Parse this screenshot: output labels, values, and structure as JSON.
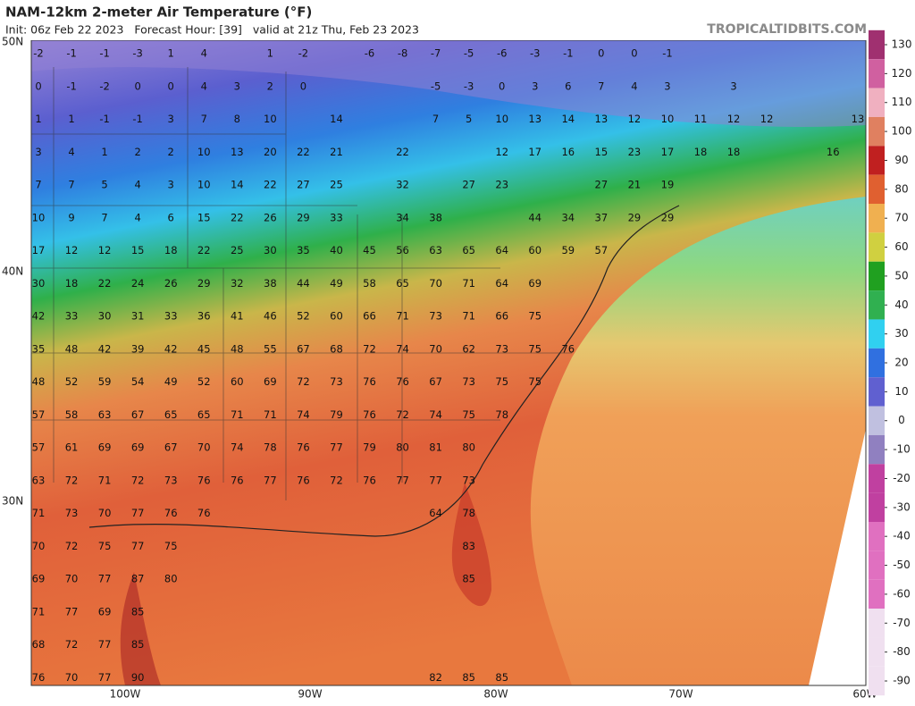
{
  "header": {
    "title": "NAM-12km 2-meter Air Temperature (°F)",
    "subtitle": "Init: 06z Feb 22 2023   Forecast Hour: [39]   valid at 21z Thu, Feb 23 2023",
    "watermark": "TROPICALTIDBITS.COM"
  },
  "map": {
    "lat_labels": [
      "50N",
      "40N",
      "30N"
    ],
    "lon_labels": [
      "100W",
      "90W",
      "80W",
      "70W",
      "60W"
    ],
    "stations": [
      [
        -2,
        -1,
        -1,
        -3,
        1,
        4,
        1,
        -2,
        -6,
        -8,
        -7,
        -5,
        -6,
        -3,
        -1,
        0,
        0,
        -1
      ],
      [
        0,
        -1,
        -2,
        0,
        0,
        4,
        3,
        2,
        0,
        -5,
        -3,
        0,
        3,
        6,
        7,
        4,
        3,
        3
      ],
      [
        1,
        1,
        -1,
        -1,
        3,
        7,
        8,
        10,
        14,
        7,
        5,
        10,
        13,
        14,
        13,
        12,
        10,
        11,
        12,
        12,
        13
      ],
      [
        3,
        4,
        1,
        2,
        2,
        10,
        13,
        20,
        22,
        21,
        22,
        12,
        17,
        16,
        15,
        23,
        17,
        18,
        18,
        16
      ],
      [
        7,
        7,
        5,
        4,
        3,
        10,
        14,
        22,
        27,
        25,
        32,
        27,
        23,
        27,
        21,
        19
      ],
      [
        10,
        9,
        7,
        4,
        6,
        15,
        22,
        26,
        29,
        33,
        34,
        38,
        44,
        34,
        37,
        29,
        29
      ],
      [
        17,
        12,
        12,
        15,
        18,
        22,
        25,
        30,
        35,
        40,
        45,
        56,
        63,
        65,
        64,
        60,
        59,
        57
      ],
      [
        30,
        18,
        22,
        24,
        26,
        29,
        32,
        38,
        44,
        49,
        58,
        65,
        70,
        71,
        64,
        69
      ],
      [
        42,
        33,
        30,
        31,
        33,
        36,
        41,
        46,
        52,
        60,
        66,
        71,
        73,
        71,
        66,
        75
      ],
      [
        35,
        48,
        42,
        39,
        42,
        45,
        48,
        55,
        67,
        68,
        72,
        74,
        70,
        62,
        73,
        75,
        76
      ],
      [
        48,
        52,
        59,
        54,
        49,
        52,
        60,
        69,
        72,
        73,
        76,
        76,
        67,
        73,
        75,
        75
      ],
      [
        57,
        58,
        63,
        67,
        65,
        65,
        71,
        71,
        74,
        79,
        76,
        72,
        74,
        75,
        78
      ],
      [
        57,
        61,
        69,
        69,
        67,
        70,
        74,
        78,
        76,
        77,
        79,
        80,
        81,
        80
      ],
      [
        63,
        72,
        71,
        72,
        73,
        76,
        76,
        77,
        76,
        72,
        76,
        77,
        77,
        73
      ],
      [
        71,
        73,
        70,
        77,
        76,
        76,
        64,
        78
      ],
      [
        70,
        72,
        75,
        77,
        75,
        83
      ],
      [
        69,
        70,
        77,
        87,
        80,
        85
      ],
      [
        71,
        77,
        69,
        85
      ],
      [
        68,
        72,
        77,
        85
      ],
      [
        76,
        70,
        77,
        90,
        82,
        85,
        85
      ]
    ]
  },
  "colorbar": {
    "ticks": [
      130,
      120,
      110,
      100,
      90,
      80,
      70,
      60,
      50,
      40,
      30,
      20,
      10,
      0,
      -10,
      -20,
      -30,
      -40,
      -50,
      -60,
      -70,
      -80,
      -90
    ]
  }
}
